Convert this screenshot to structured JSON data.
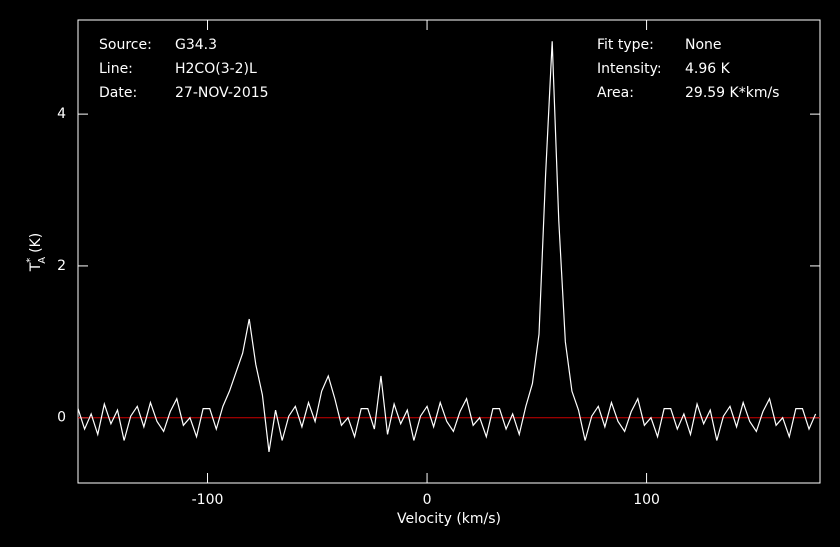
{
  "chart_data": {
    "type": "line",
    "xlabel": "Velocity (km/s)",
    "ylabel": {
      "symbol": "T",
      "superscript": "*",
      "subscript": "A",
      "unit": "(K)"
    },
    "info_left": [
      {
        "label": "Source:",
        "value": "G34.3"
      },
      {
        "label": "Line:",
        "value": "H2CO(3-2)L"
      },
      {
        "label": "Date:",
        "value": "27-NOV-2015"
      }
    ],
    "info_right": [
      {
        "label": "Fit type:",
        "value": "None"
      },
      {
        "label": "Intensity:",
        "value": "4.96 K"
      },
      {
        "label": "Area:",
        "value": "29.59 K*km/s"
      }
    ],
    "xlim": [
      -159,
      179
    ],
    "ylim": [
      -0.86,
      5.24
    ],
    "xticks": [
      -100,
      0,
      100
    ],
    "yticks": [
      0,
      2,
      4
    ],
    "baseline": 0,
    "baseline_color": "#cc0000",
    "x": [
      -159,
      -156,
      -153,
      -150,
      -147,
      -144,
      -141,
      -138,
      -135,
      -132,
      -129,
      -126,
      -123,
      -120,
      -117,
      -114,
      -111,
      -108,
      -105,
      -102,
      -99,
      -96,
      -93,
      -90,
      -87,
      -84,
      -81,
      -78,
      -75,
      -72,
      -69,
      -66,
      -63,
      -60,
      -57,
      -54,
      -51,
      -48,
      -45,
      -42,
      -39,
      -36,
      -33,
      -30,
      -27,
      -24,
      -21,
      -18,
      -15,
      -12,
      -9,
      -6,
      -3,
      0,
      3,
      6,
      9,
      12,
      15,
      18,
      21,
      24,
      27,
      30,
      33,
      36,
      39,
      42,
      45,
      48,
      51,
      54,
      57,
      60,
      63,
      66,
      69,
      72,
      75,
      78,
      81,
      84,
      87,
      90,
      93,
      96,
      99,
      102,
      105,
      108,
      111,
      114,
      117,
      120,
      123,
      126,
      129,
      132,
      135,
      138,
      141,
      144,
      147,
      150,
      153,
      156,
      159,
      162,
      165,
      168,
      171,
      174,
      177
    ],
    "series": [
      {
        "color": "#ffffff",
        "values": [
          0.12,
          -0.15,
          0.05,
          -0.22,
          0.18,
          -0.08,
          0.1,
          -0.3,
          0.02,
          0.15,
          -0.12,
          0.2,
          -0.05,
          -0.18,
          0.08,
          0.25,
          -0.1,
          0.0,
          -0.25,
          0.12,
          0.12,
          -0.15,
          0.15,
          0.35,
          0.6,
          0.85,
          1.3,
          0.7,
          0.3,
          -0.45,
          0.1,
          -0.3,
          0.02,
          0.15,
          -0.12,
          0.2,
          -0.05,
          0.35,
          0.55,
          0.25,
          -0.1,
          0.0,
          -0.25,
          0.12,
          0.12,
          -0.15,
          0.55,
          -0.22,
          0.18,
          -0.08,
          0.1,
          -0.3,
          0.02,
          0.15,
          -0.12,
          0.2,
          -0.05,
          -0.18,
          0.08,
          0.25,
          -0.1,
          0.0,
          -0.25,
          0.12,
          0.12,
          -0.15,
          0.05,
          -0.22,
          0.15,
          0.45,
          1.1,
          3.2,
          4.96,
          2.6,
          1.0,
          0.35,
          0.1,
          -0.3,
          0.02,
          0.15,
          -0.12,
          0.2,
          -0.05,
          -0.18,
          0.08,
          0.25,
          -0.1,
          0.0,
          -0.25,
          0.12,
          0.12,
          -0.15,
          0.05,
          -0.22,
          0.18,
          -0.08,
          0.1,
          -0.3,
          0.02,
          0.15,
          -0.12,
          0.2,
          -0.05,
          -0.18,
          0.08,
          0.25,
          -0.1,
          0.0,
          -0.25,
          0.12,
          0.12,
          -0.15,
          0.05
        ]
      }
    ]
  }
}
